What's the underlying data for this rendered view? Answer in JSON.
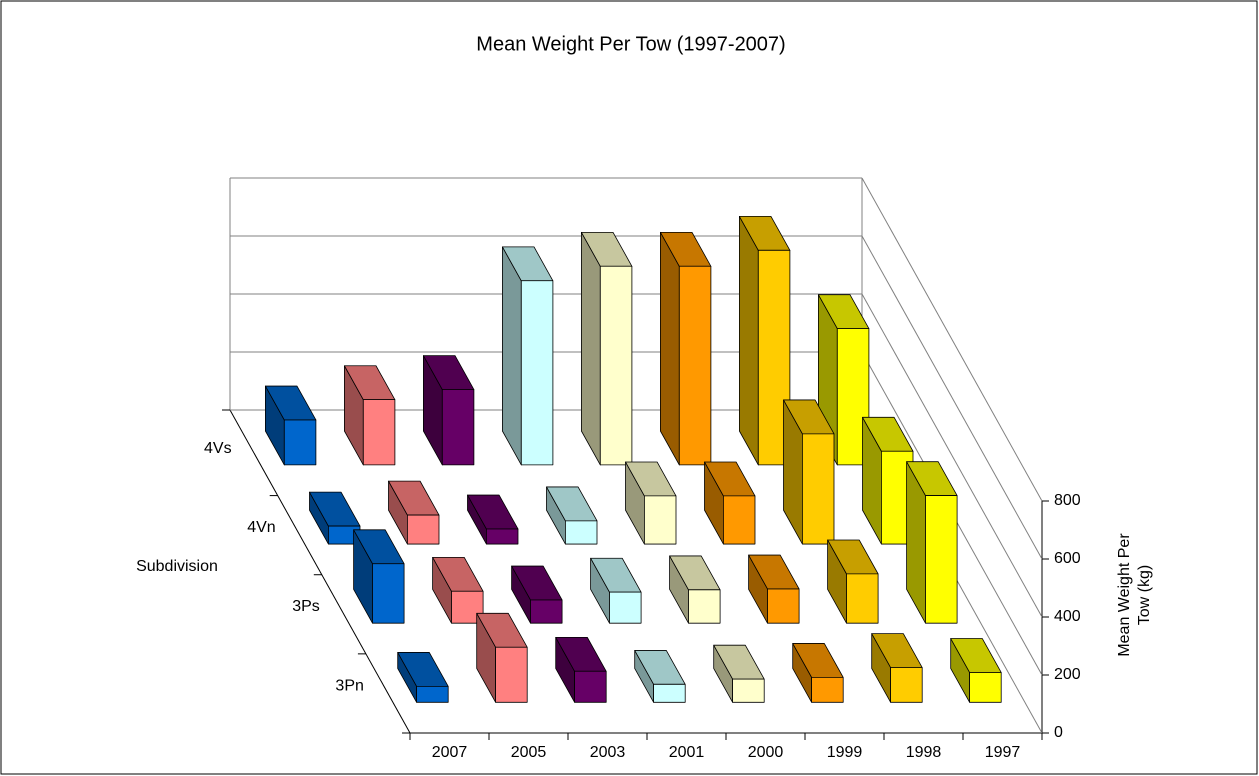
{
  "chart_data": {
    "type": "bar3d",
    "title": "Mean Weight Per Tow (1997-2007)",
    "ylabel": "Mean Weight Per Tow (kg)",
    "zlabel": "Subdivision",
    "categories": [
      "2007",
      "2005",
      "2003",
      "2001",
      "2000",
      "1999",
      "1998",
      "1997"
    ],
    "colors": [
      "#0066cc",
      "#ff8080",
      "#660066",
      "#ccffff",
      "#ffffcc",
      "#ff9900",
      "#ffcc00",
      "#ffff00"
    ],
    "series": [
      {
        "name": "4Vs",
        "values": [
          155,
          225,
          260,
          635,
          685,
          685,
          740,
          470
        ]
      },
      {
        "name": "4Vn",
        "values": [
          62,
          100,
          52,
          80,
          166,
          166,
          380,
          320
        ]
      },
      {
        "name": "3Ps",
        "values": [
          205,
          110,
          80,
          107,
          115,
          118,
          170,
          440
        ]
      },
      {
        "name": "3Pn",
        "values": [
          55,
          190,
          107,
          62,
          80,
          86,
          120,
          103
        ]
      }
    ],
    "ylim": [
      0,
      800
    ],
    "yticks": [
      0,
      200,
      400,
      600,
      800
    ],
    "grid": true
  }
}
